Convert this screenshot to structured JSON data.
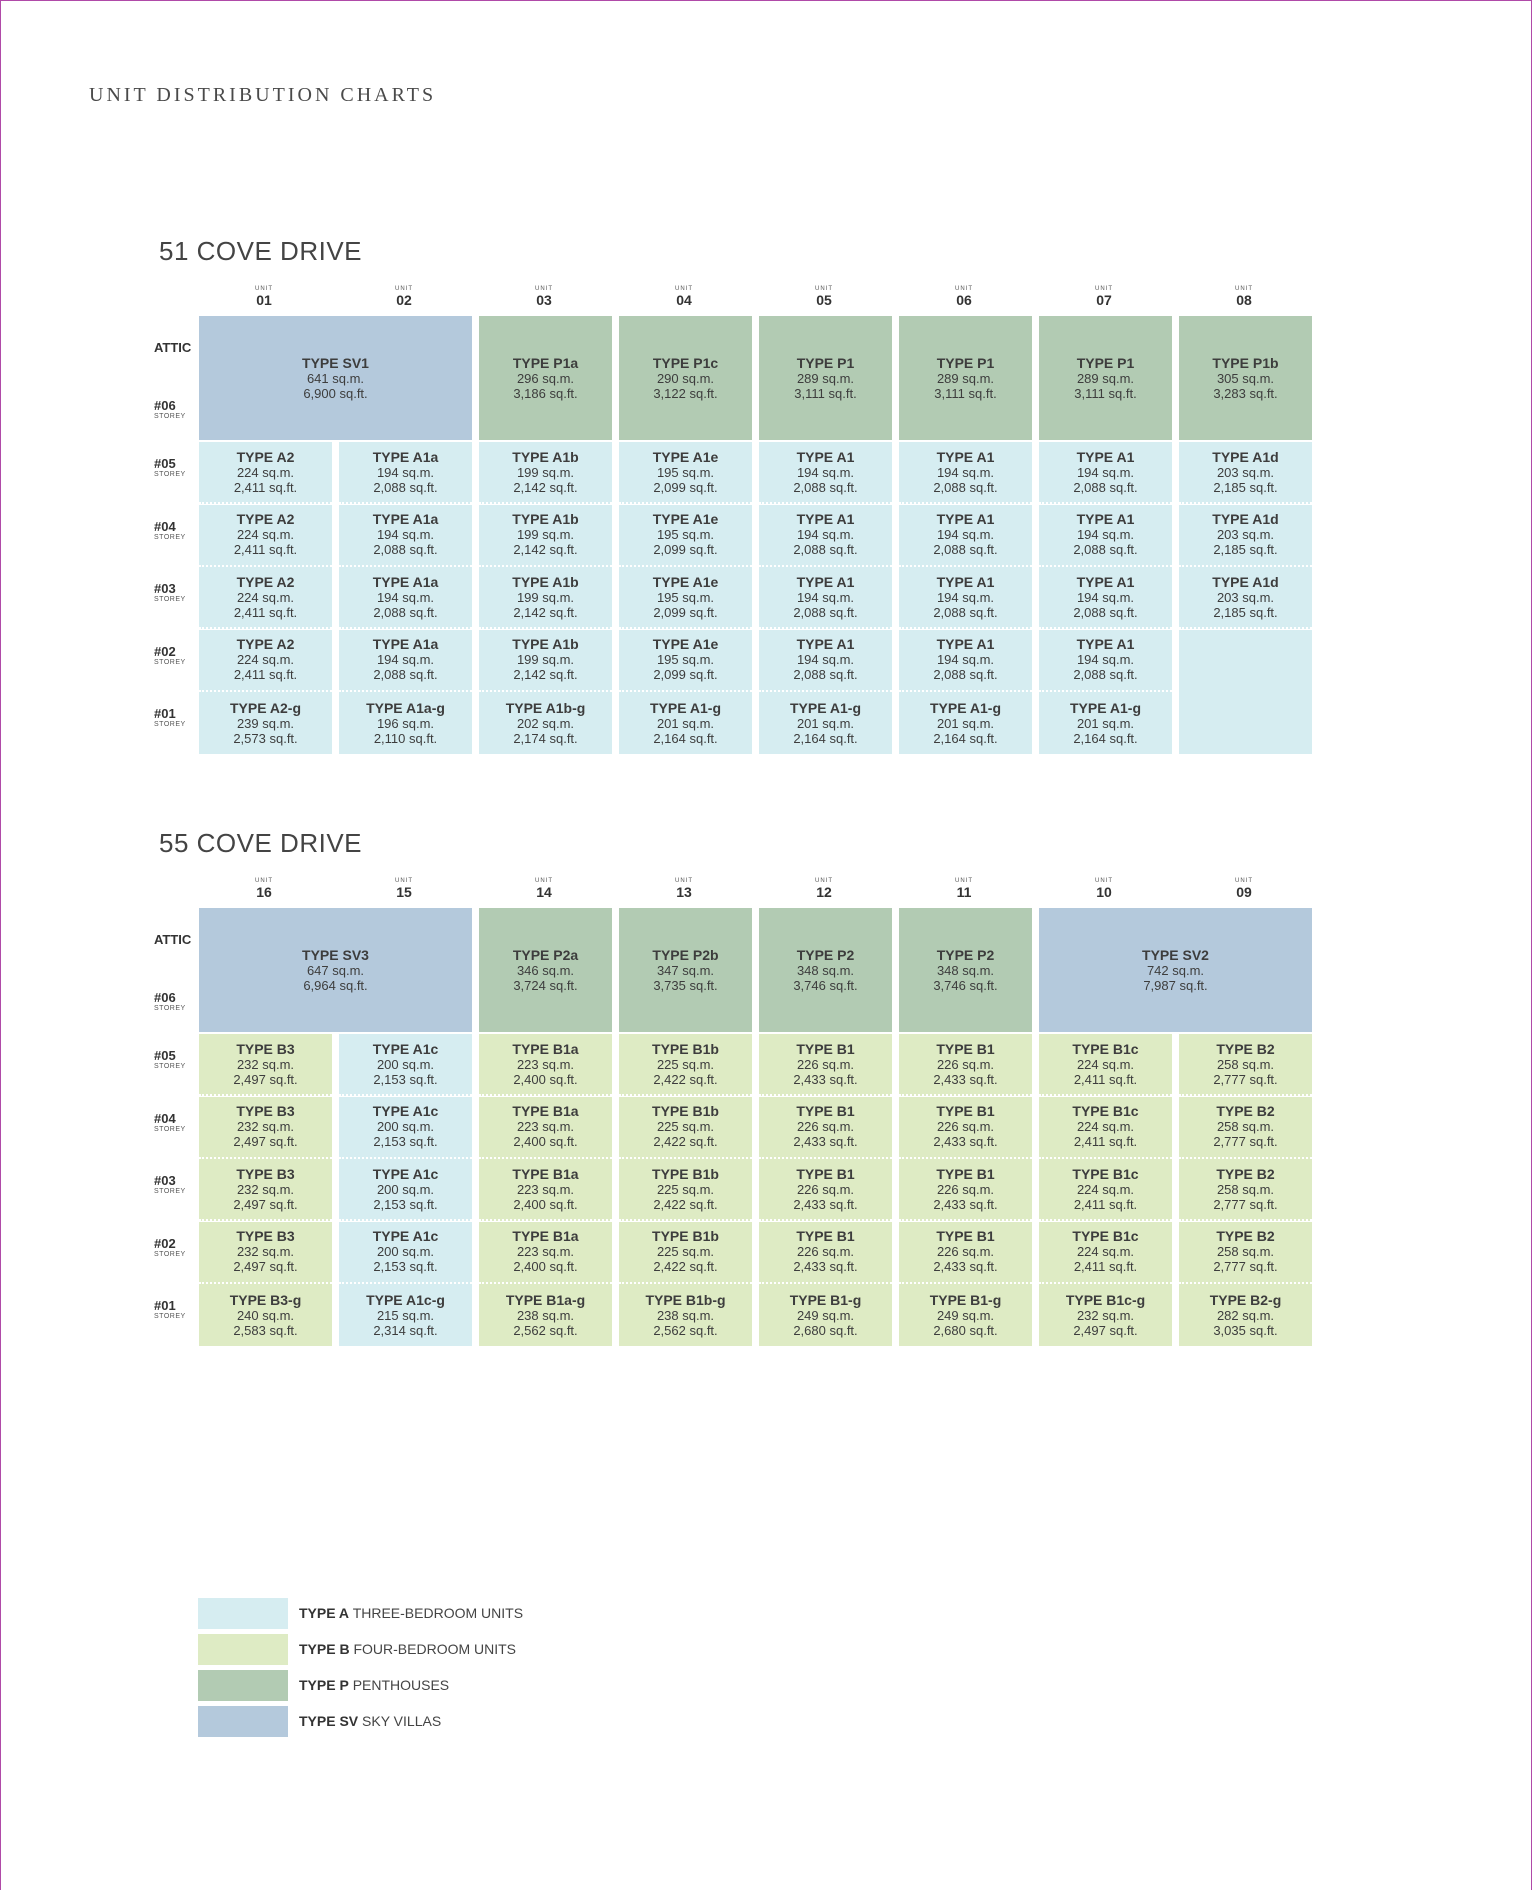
{
  "page": {
    "title": "UNIT DISTRIBUTION CHARTS"
  },
  "colors": {
    "A": "#d6edf1",
    "B": "#deebc4",
    "P": "#b2cbb3",
    "SV": "#b4c9dc",
    "empty": "#d6edf1"
  },
  "unit_label": "UNIT",
  "storey_label": "STOREY",
  "buildings": [
    {
      "name": "51 COVE DRIVE",
      "units": [
        "01",
        "02",
        "03",
        "04",
        "05",
        "06",
        "07",
        "08"
      ],
      "rows": [
        "ATTIC",
        "#06",
        "#05",
        "#04",
        "#03",
        "#02",
        "#01"
      ],
      "top_cells": [
        {
          "cat": "SV",
          "span": 2,
          "type": "TYPE SV1",
          "sqm": "641 sq.m.",
          "sqft": "6,900 sq.ft."
        },
        {
          "cat": "P",
          "span": 1,
          "type": "TYPE P1a",
          "sqm": "296 sq.m.",
          "sqft": "3,186 sq.ft."
        },
        {
          "cat": "P",
          "span": 1,
          "type": "TYPE P1c",
          "sqm": "290 sq.m.",
          "sqft": "3,122 sq.ft."
        },
        {
          "cat": "P",
          "span": 1,
          "type": "TYPE P1",
          "sqm": "289 sq.m.",
          "sqft": "3,111 sq.ft."
        },
        {
          "cat": "P",
          "span": 1,
          "type": "TYPE P1",
          "sqm": "289 sq.m.",
          "sqft": "3,111 sq.ft."
        },
        {
          "cat": "P",
          "span": 1,
          "type": "TYPE P1",
          "sqm": "289 sq.m.",
          "sqft": "3,111 sq.ft."
        },
        {
          "cat": "P",
          "span": 1,
          "type": "TYPE P1b",
          "sqm": "305 sq.m.",
          "sqft": "3,283 sq.ft."
        }
      ],
      "grid": [
        [
          {
            "cat": "A",
            "type": "TYPE A2",
            "sqm": "224 sq.m.",
            "sqft": "2,411 sq.ft."
          },
          {
            "cat": "A",
            "type": "TYPE A1a",
            "sqm": "194 sq.m.",
            "sqft": "2,088 sq.ft."
          },
          {
            "cat": "A",
            "type": "TYPE A1b",
            "sqm": "199 sq.m.",
            "sqft": "2,142 sq.ft."
          },
          {
            "cat": "A",
            "type": "TYPE A1e",
            "sqm": "195 sq.m.",
            "sqft": "2,099 sq.ft."
          },
          {
            "cat": "A",
            "type": "TYPE A1",
            "sqm": "194 sq.m.",
            "sqft": "2,088 sq.ft."
          },
          {
            "cat": "A",
            "type": "TYPE A1",
            "sqm": "194 sq.m.",
            "sqft": "2,088 sq.ft."
          },
          {
            "cat": "A",
            "type": "TYPE A1",
            "sqm": "194 sq.m.",
            "sqft": "2,088 sq.ft."
          },
          {
            "cat": "A",
            "type": "TYPE A1d",
            "sqm": "203 sq.m.",
            "sqft": "2,185 sq.ft."
          }
        ],
        [
          {
            "cat": "A",
            "type": "TYPE A2",
            "sqm": "224 sq.m.",
            "sqft": "2,411 sq.ft."
          },
          {
            "cat": "A",
            "type": "TYPE A1a",
            "sqm": "194 sq.m.",
            "sqft": "2,088 sq.ft."
          },
          {
            "cat": "A",
            "type": "TYPE A1b",
            "sqm": "199 sq.m.",
            "sqft": "2,142 sq.ft."
          },
          {
            "cat": "A",
            "type": "TYPE A1e",
            "sqm": "195 sq.m.",
            "sqft": "2,099 sq.ft."
          },
          {
            "cat": "A",
            "type": "TYPE A1",
            "sqm": "194 sq.m.",
            "sqft": "2,088 sq.ft."
          },
          {
            "cat": "A",
            "type": "TYPE A1",
            "sqm": "194 sq.m.",
            "sqft": "2,088 sq.ft."
          },
          {
            "cat": "A",
            "type": "TYPE A1",
            "sqm": "194 sq.m.",
            "sqft": "2,088 sq.ft."
          },
          {
            "cat": "A",
            "type": "TYPE A1d",
            "sqm": "203 sq.m.",
            "sqft": "2,185 sq.ft."
          }
        ],
        [
          {
            "cat": "A",
            "type": "TYPE A2",
            "sqm": "224 sq.m.",
            "sqft": "2,411 sq.ft."
          },
          {
            "cat": "A",
            "type": "TYPE A1a",
            "sqm": "194 sq.m.",
            "sqft": "2,088 sq.ft."
          },
          {
            "cat": "A",
            "type": "TYPE A1b",
            "sqm": "199 sq.m.",
            "sqft": "2,142 sq.ft."
          },
          {
            "cat": "A",
            "type": "TYPE A1e",
            "sqm": "195 sq.m.",
            "sqft": "2,099 sq.ft."
          },
          {
            "cat": "A",
            "type": "TYPE A1",
            "sqm": "194 sq.m.",
            "sqft": "2,088 sq.ft."
          },
          {
            "cat": "A",
            "type": "TYPE A1",
            "sqm": "194 sq.m.",
            "sqft": "2,088 sq.ft."
          },
          {
            "cat": "A",
            "type": "TYPE A1",
            "sqm": "194 sq.m.",
            "sqft": "2,088 sq.ft."
          },
          {
            "cat": "A",
            "type": "TYPE A1d",
            "sqm": "203 sq.m.",
            "sqft": "2,185 sq.ft."
          }
        ],
        [
          {
            "cat": "A",
            "type": "TYPE A2",
            "sqm": "224 sq.m.",
            "sqft": "2,411 sq.ft."
          },
          {
            "cat": "A",
            "type": "TYPE A1a",
            "sqm": "194 sq.m.",
            "sqft": "2,088 sq.ft."
          },
          {
            "cat": "A",
            "type": "TYPE A1b",
            "sqm": "199 sq.m.",
            "sqft": "2,142 sq.ft."
          },
          {
            "cat": "A",
            "type": "TYPE A1e",
            "sqm": "195 sq.m.",
            "sqft": "2,099 sq.ft."
          },
          {
            "cat": "A",
            "type": "TYPE A1",
            "sqm": "194 sq.m.",
            "sqft": "2,088 sq.ft."
          },
          {
            "cat": "A",
            "type": "TYPE A1",
            "sqm": "194 sq.m.",
            "sqft": "2,088 sq.ft."
          },
          {
            "cat": "A",
            "type": "TYPE A1",
            "sqm": "194 sq.m.",
            "sqft": "2,088 sq.ft."
          },
          {
            "cat": "empty",
            "type": "",
            "sqm": "",
            "sqft": "",
            "merge_down": true
          }
        ],
        [
          {
            "cat": "A",
            "type": "TYPE A2-g",
            "sqm": "239 sq.m.",
            "sqft": "2,573 sq.ft."
          },
          {
            "cat": "A",
            "type": "TYPE A1a-g",
            "sqm": "196 sq.m.",
            "sqft": "2,110 sq.ft."
          },
          {
            "cat": "A",
            "type": "TYPE A1b-g",
            "sqm": "202 sq.m.",
            "sqft": "2,174 sq.ft."
          },
          {
            "cat": "A",
            "type": "TYPE A1-g",
            "sqm": "201 sq.m.",
            "sqft": "2,164 sq.ft."
          },
          {
            "cat": "A",
            "type": "TYPE A1-g",
            "sqm": "201 sq.m.",
            "sqft": "2,164 sq.ft."
          },
          {
            "cat": "A",
            "type": "TYPE A1-g",
            "sqm": "201 sq.m.",
            "sqft": "2,164 sq.ft."
          },
          {
            "cat": "A",
            "type": "TYPE A1-g",
            "sqm": "201 sq.m.",
            "sqft": "2,164 sq.ft."
          },
          {
            "cat": "empty",
            "type": "",
            "sqm": "",
            "sqft": ""
          }
        ]
      ]
    },
    {
      "name": "55 COVE DRIVE",
      "units": [
        "16",
        "15",
        "14",
        "13",
        "12",
        "11",
        "10",
        "09"
      ],
      "rows": [
        "ATTIC",
        "#06",
        "#05",
        "#04",
        "#03",
        "#02",
        "#01"
      ],
      "top_cells": [
        {
          "cat": "SV",
          "span": 2,
          "type": "TYPE SV3",
          "sqm": "647 sq.m.",
          "sqft": "6,964 sq.ft."
        },
        {
          "cat": "P",
          "span": 1,
          "type": "TYPE P2a",
          "sqm": "346 sq.m.",
          "sqft": "3,724 sq.ft."
        },
        {
          "cat": "P",
          "span": 1,
          "type": "TYPE P2b",
          "sqm": "347 sq.m.",
          "sqft": "3,735 sq.ft."
        },
        {
          "cat": "P",
          "span": 1,
          "type": "TYPE P2",
          "sqm": "348 sq.m.",
          "sqft": "3,746 sq.ft."
        },
        {
          "cat": "P",
          "span": 1,
          "type": "TYPE P2",
          "sqm": "348 sq.m.",
          "sqft": "3,746 sq.ft."
        },
        {
          "cat": "SV",
          "span": 2,
          "type": "TYPE SV2",
          "sqm": "742 sq.m.",
          "sqft": "7,987 sq.ft."
        }
      ],
      "grid": [
        [
          {
            "cat": "B",
            "type": "TYPE B3",
            "sqm": "232 sq.m.",
            "sqft": "2,497 sq.ft."
          },
          {
            "cat": "A",
            "type": "TYPE A1c",
            "sqm": "200 sq.m.",
            "sqft": "2,153 sq.ft."
          },
          {
            "cat": "B",
            "type": "TYPE B1a",
            "sqm": "223 sq.m.",
            "sqft": "2,400 sq.ft."
          },
          {
            "cat": "B",
            "type": "TYPE B1b",
            "sqm": "225 sq.m.",
            "sqft": "2,422 sq.ft."
          },
          {
            "cat": "B",
            "type": "TYPE B1",
            "sqm": "226 sq.m.",
            "sqft": "2,433 sq.ft."
          },
          {
            "cat": "B",
            "type": "TYPE B1",
            "sqm": "226 sq.m.",
            "sqft": "2,433 sq.ft."
          },
          {
            "cat": "B",
            "type": "TYPE B1c",
            "sqm": "224 sq.m.",
            "sqft": "2,411 sq.ft."
          },
          {
            "cat": "B",
            "type": "TYPE B2",
            "sqm": "258 sq.m.",
            "sqft": "2,777 sq.ft."
          }
        ],
        [
          {
            "cat": "B",
            "type": "TYPE B3",
            "sqm": "232 sq.m.",
            "sqft": "2,497 sq.ft."
          },
          {
            "cat": "A",
            "type": "TYPE A1c",
            "sqm": "200 sq.m.",
            "sqft": "2,153 sq.ft."
          },
          {
            "cat": "B",
            "type": "TYPE B1a",
            "sqm": "223 sq.m.",
            "sqft": "2,400 sq.ft."
          },
          {
            "cat": "B",
            "type": "TYPE B1b",
            "sqm": "225 sq.m.",
            "sqft": "2,422 sq.ft."
          },
          {
            "cat": "B",
            "type": "TYPE B1",
            "sqm": "226 sq.m.",
            "sqft": "2,433 sq.ft."
          },
          {
            "cat": "B",
            "type": "TYPE B1",
            "sqm": "226 sq.m.",
            "sqft": "2,433 sq.ft."
          },
          {
            "cat": "B",
            "type": "TYPE B1c",
            "sqm": "224 sq.m.",
            "sqft": "2,411 sq.ft."
          },
          {
            "cat": "B",
            "type": "TYPE B2",
            "sqm": "258 sq.m.",
            "sqft": "2,777 sq.ft."
          }
        ],
        [
          {
            "cat": "B",
            "type": "TYPE B3",
            "sqm": "232 sq.m.",
            "sqft": "2,497 sq.ft."
          },
          {
            "cat": "A",
            "type": "TYPE A1c",
            "sqm": "200 sq.m.",
            "sqft": "2,153 sq.ft."
          },
          {
            "cat": "B",
            "type": "TYPE B1a",
            "sqm": "223 sq.m.",
            "sqft": "2,400 sq.ft."
          },
          {
            "cat": "B",
            "type": "TYPE B1b",
            "sqm": "225 sq.m.",
            "sqft": "2,422 sq.ft."
          },
          {
            "cat": "B",
            "type": "TYPE B1",
            "sqm": "226 sq.m.",
            "sqft": "2,433 sq.ft."
          },
          {
            "cat": "B",
            "type": "TYPE B1",
            "sqm": "226 sq.m.",
            "sqft": "2,433 sq.ft."
          },
          {
            "cat": "B",
            "type": "TYPE B1c",
            "sqm": "224 sq.m.",
            "sqft": "2,411 sq.ft."
          },
          {
            "cat": "B",
            "type": "TYPE B2",
            "sqm": "258 sq.m.",
            "sqft": "2,777 sq.ft."
          }
        ],
        [
          {
            "cat": "B",
            "type": "TYPE B3",
            "sqm": "232 sq.m.",
            "sqft": "2,497 sq.ft."
          },
          {
            "cat": "A",
            "type": "TYPE A1c",
            "sqm": "200 sq.m.",
            "sqft": "2,153 sq.ft."
          },
          {
            "cat": "B",
            "type": "TYPE B1a",
            "sqm": "223 sq.m.",
            "sqft": "2,400 sq.ft."
          },
          {
            "cat": "B",
            "type": "TYPE B1b",
            "sqm": "225 sq.m.",
            "sqft": "2,422 sq.ft."
          },
          {
            "cat": "B",
            "type": "TYPE B1",
            "sqm": "226 sq.m.",
            "sqft": "2,433 sq.ft."
          },
          {
            "cat": "B",
            "type": "TYPE B1",
            "sqm": "226 sq.m.",
            "sqft": "2,433 sq.ft."
          },
          {
            "cat": "B",
            "type": "TYPE B1c",
            "sqm": "224 sq.m.",
            "sqft": "2,411 sq.ft."
          },
          {
            "cat": "B",
            "type": "TYPE B2",
            "sqm": "258 sq.m.",
            "sqft": "2,777 sq.ft."
          }
        ],
        [
          {
            "cat": "B",
            "type": "TYPE B3-g",
            "sqm": "240 sq.m.",
            "sqft": "2,583 sq.ft."
          },
          {
            "cat": "A",
            "type": "TYPE A1c-g",
            "sqm": "215 sq.m.",
            "sqft": "2,314 sq.ft."
          },
          {
            "cat": "B",
            "type": "TYPE B1a-g",
            "sqm": "238 sq.m.",
            "sqft": "2,562 sq.ft."
          },
          {
            "cat": "B",
            "type": "TYPE B1b-g",
            "sqm": "238 sq.m.",
            "sqft": "2,562 sq.ft."
          },
          {
            "cat": "B",
            "type": "TYPE B1-g",
            "sqm": "249 sq.m.",
            "sqft": "2,680 sq.ft."
          },
          {
            "cat": "B",
            "type": "TYPE B1-g",
            "sqm": "249 sq.m.",
            "sqft": "2,680 sq.ft."
          },
          {
            "cat": "B",
            "type": "TYPE B1c-g",
            "sqm": "232 sq.m.",
            "sqft": "2,497 sq.ft."
          },
          {
            "cat": "B",
            "type": "TYPE B2-g",
            "sqm": "282 sq.m.",
            "sqft": "3,035 sq.ft."
          }
        ]
      ]
    }
  ],
  "legend": [
    {
      "cat": "A",
      "code": "TYPE A",
      "desc": "THREE-BEDROOM UNITS"
    },
    {
      "cat": "B",
      "code": "TYPE B",
      "desc": "FOUR-BEDROOM UNITS"
    },
    {
      "cat": "P",
      "code": "TYPE P",
      "desc": "PENTHOUSES"
    },
    {
      "cat": "SV",
      "code": "TYPE SV",
      "desc": "SKY VILLAS"
    }
  ]
}
